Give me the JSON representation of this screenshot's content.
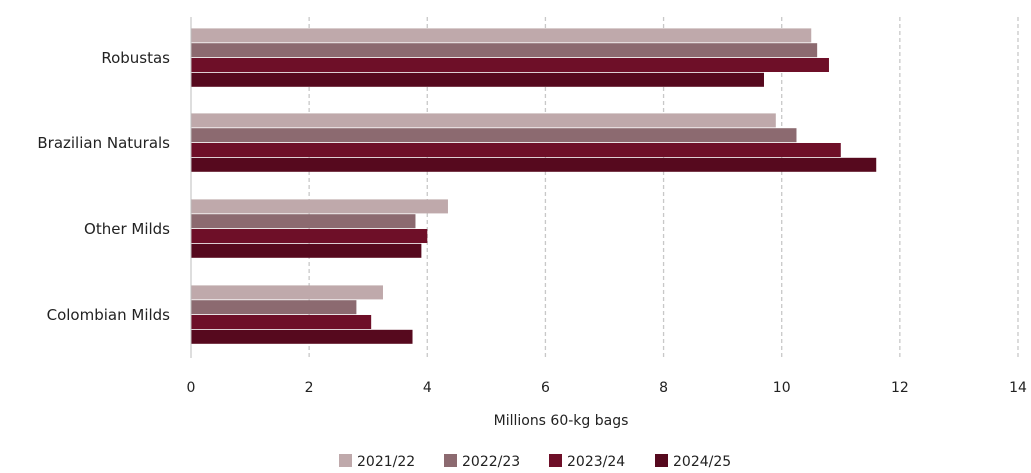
{
  "chart_data": {
    "type": "bar",
    "orientation": "horizontal",
    "categories": [
      "Robustas",
      "Brazilian Naturals",
      "Other Milds",
      "Colombian Milds"
    ],
    "series": [
      {
        "name": "2021/22",
        "color": "#bfa9ab",
        "values": [
          10.5,
          9.9,
          4.35,
          3.25
        ]
      },
      {
        "name": "2022/23",
        "color": "#8c6a70",
        "values": [
          10.6,
          10.25,
          3.8,
          2.8
        ]
      },
      {
        "name": "2023/24",
        "color": "#6e0f28",
        "values": [
          10.8,
          11.0,
          4.0,
          3.05
        ]
      },
      {
        "name": "2024/25",
        "color": "#56091e",
        "values": [
          9.7,
          11.6,
          3.9,
          3.75
        ]
      }
    ],
    "x_ticks": [
      "0",
      "2",
      "4",
      "6",
      "8",
      "10",
      "12",
      "14"
    ],
    "xlim": [
      0,
      14
    ],
    "xlabel": "Millions 60-kg bags",
    "grid": "vertical dashed",
    "legend_position": "bottom"
  }
}
